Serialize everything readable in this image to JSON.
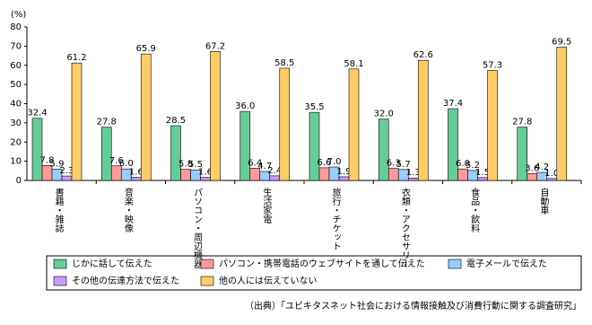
{
  "chart_data": {
    "type": "bar",
    "y_unit": "(%)",
    "categories": [
      "書籍・雑誌",
      "音楽・映像",
      "パソコン・周辺機器",
      "生活家電",
      "旅行・チケット",
      "衣類・アクセサリー",
      "食品・飲料",
      "自動車"
    ],
    "series": [
      {
        "name": "じかに話して伝えた",
        "color": "#66cc99",
        "values": [
          32.4,
          27.8,
          28.5,
          36.0,
          35.5,
          32.0,
          37.4,
          27.8
        ],
        "value_labels": [
          "32.4",
          "27.8",
          "28.5",
          "36.0",
          "35.5",
          "32.0",
          "37.4",
          "27.8"
        ]
      },
      {
        "name": "パソコン・携帯電話のウェブサイトを通して伝えた",
        "color": "#ff9999",
        "values": [
          7.8,
          7.6,
          5.8,
          6.4,
          6.6,
          6.3,
          6.0,
          3.6
        ],
        "value_labels": [
          "7.8",
          "7.6",
          "5.8",
          "6.4",
          "6.6",
          "6.3",
          "6.0",
          "3.6"
        ]
      },
      {
        "name": "電子メールで伝えた",
        "color": "#99ccff",
        "values": [
          5.9,
          6.0,
          5.5,
          4.7,
          7.0,
          5.7,
          5.2,
          4.2
        ],
        "value_labels": [
          "5.9",
          "6.0",
          "5.5",
          "4.7",
          "7.0",
          "5.7",
          "5.2",
          "4.2"
        ]
      },
      {
        "name": "その他の伝達方法で伝えた",
        "color": "#cc99ff",
        "values": [
          2.3,
          1.6,
          1.6,
          2.4,
          1.9,
          1.3,
          1.5,
          1.0
        ],
        "value_labels": [
          "2.3",
          "1.6",
          "1.6",
          "2.4",
          "1.9",
          "1.3",
          "1.5",
          "1.0"
        ]
      },
      {
        "name": "他の人には伝えていない",
        "color": "#ffcc66",
        "values": [
          61.2,
          65.9,
          67.2,
          58.5,
          58.1,
          62.6,
          57.3,
          69.5
        ],
        "value_labels": [
          "61.2",
          "65.9",
          "67.2",
          "58.5",
          "58.1",
          "62.6",
          "57.3",
          "69.5"
        ]
      }
    ],
    "ylim": [
      0,
      80
    ],
    "yticks": [
      0,
      10,
      20,
      30,
      40,
      50,
      60,
      70,
      80
    ],
    "grid": false,
    "source": "（出典）「ユビキタスネット社会における情報接触及び消費行動に関する調査研究」"
  }
}
